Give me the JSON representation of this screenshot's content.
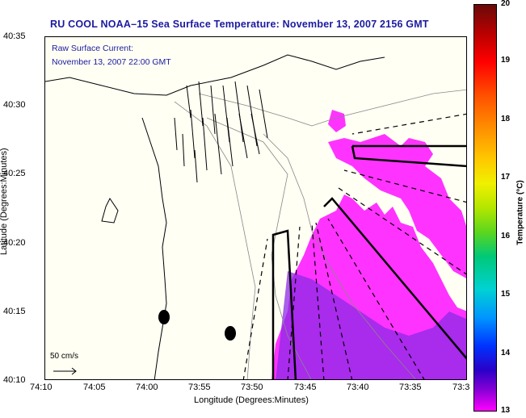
{
  "title": "RU COOL  NOAA–15  Sea Surface Temperature:  November 13, 2007 2156 GMT",
  "current_label": "Raw Surface Current:",
  "current_time": "November 13, 2007 22:00 GMT",
  "scale_label": "50 cm/s",
  "axes": {
    "xlabel": "Longitude (Degrees:Minutes)",
    "ylabel": "Latitude (Degrees:Minutes)",
    "xticks": [
      "74:10",
      "74:05",
      "74:00",
      "73:55",
      "73:50",
      "73:45",
      "73:40",
      "73:35",
      "73:3"
    ],
    "yticks": [
      "40:35",
      "40:30",
      "40:25",
      "40:20",
      "40:15",
      "40:10"
    ]
  },
  "colorbar": {
    "title": "Temperature (°C)",
    "ticks": [
      "20",
      "19",
      "18",
      "17",
      "16",
      "15",
      "14",
      "13"
    ],
    "range": [
      13,
      20
    ]
  },
  "colors": {
    "title_color": "#1a1aa0",
    "sst_patch": "#ff00ff",
    "warm_patch": "#b400e6",
    "land": "#fffff4"
  }
}
